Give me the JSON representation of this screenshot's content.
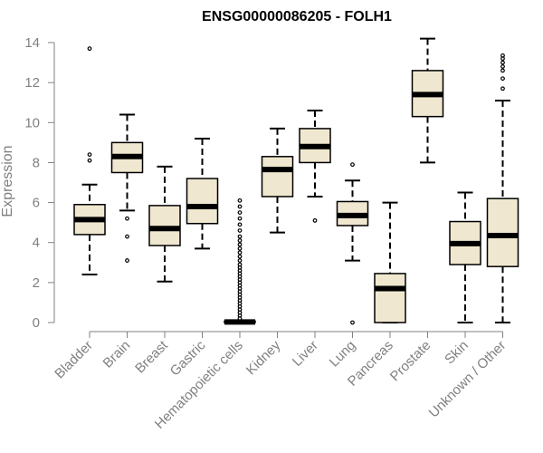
{
  "chart_data": {
    "type": "boxplot",
    "title": "ENSG00000086205 - FOLH1",
    "xlabel": "",
    "ylabel": "Expression",
    "ylim": [
      0,
      14
    ],
    "yticks": [
      0,
      2,
      4,
      6,
      8,
      10,
      12,
      14
    ],
    "box_fill": "#EFE7CF",
    "categories": [
      "Bladder",
      "Brain",
      "Breast",
      "Gastric",
      "Hematopoietic cells",
      "Kidney",
      "Liver",
      "Lung",
      "Pancreas",
      "Prostate",
      "Skin",
      "Unknown / Other"
    ],
    "boxes": [
      {
        "whisker_low": 2.4,
        "q1": 4.4,
        "median": 5.15,
        "q3": 5.9,
        "whisker_high": 6.9,
        "outliers": [
          8.1,
          8.4,
          13.7
        ]
      },
      {
        "whisker_low": 5.6,
        "q1": 7.5,
        "median": 8.3,
        "q3": 9.0,
        "whisker_high": 10.4,
        "outliers": [
          5.2,
          4.3,
          3.1
        ]
      },
      {
        "whisker_low": 2.05,
        "q1": 3.85,
        "median": 4.7,
        "q3": 5.85,
        "whisker_high": 7.8,
        "outliers": []
      },
      {
        "whisker_low": 3.7,
        "q1": 4.95,
        "median": 5.8,
        "q3": 7.2,
        "whisker_high": 9.2,
        "outliers": []
      },
      {
        "whisker_low": 0.0,
        "q1": 0.0,
        "median": 0.03,
        "q3": 0.07,
        "whisker_high": 0.1,
        "outliers": [
          0.2,
          0.35,
          0.5,
          0.65,
          0.8,
          0.95,
          1.1,
          1.25,
          1.4,
          1.55,
          1.7,
          1.85,
          2.0,
          2.15,
          2.3,
          2.45,
          2.6,
          2.75,
          2.9,
          3.1,
          3.3,
          3.5,
          3.7,
          3.9,
          4.1,
          4.3,
          4.6,
          4.9,
          5.2,
          5.5,
          5.8,
          6.1
        ]
      },
      {
        "whisker_low": 4.5,
        "q1": 6.3,
        "median": 7.65,
        "q3": 8.3,
        "whisker_high": 9.7,
        "outliers": []
      },
      {
        "whisker_low": 6.3,
        "q1": 8.0,
        "median": 8.8,
        "q3": 9.7,
        "whisker_high": 10.6,
        "outliers": [
          5.1
        ]
      },
      {
        "whisker_low": 3.1,
        "q1": 4.85,
        "median": 5.35,
        "q3": 6.05,
        "whisker_high": 7.1,
        "outliers": [
          7.9,
          0.0
        ]
      },
      {
        "whisker_low": 0.0,
        "q1": 0.0,
        "median": 1.7,
        "q3": 2.45,
        "whisker_high": 6.0,
        "outliers": []
      },
      {
        "whisker_low": 8.0,
        "q1": 10.3,
        "median": 11.4,
        "q3": 12.6,
        "whisker_high": 14.2,
        "outliers": []
      },
      {
        "whisker_low": 0.0,
        "q1": 2.9,
        "median": 3.95,
        "q3": 5.05,
        "whisker_high": 6.5,
        "outliers": []
      },
      {
        "whisker_low": 0.0,
        "q1": 2.8,
        "median": 4.35,
        "q3": 6.2,
        "whisker_high": 11.1,
        "outliers": [
          11.7,
          12.2,
          12.6,
          12.8,
          13.0,
          13.2,
          13.35
        ]
      }
    ]
  }
}
